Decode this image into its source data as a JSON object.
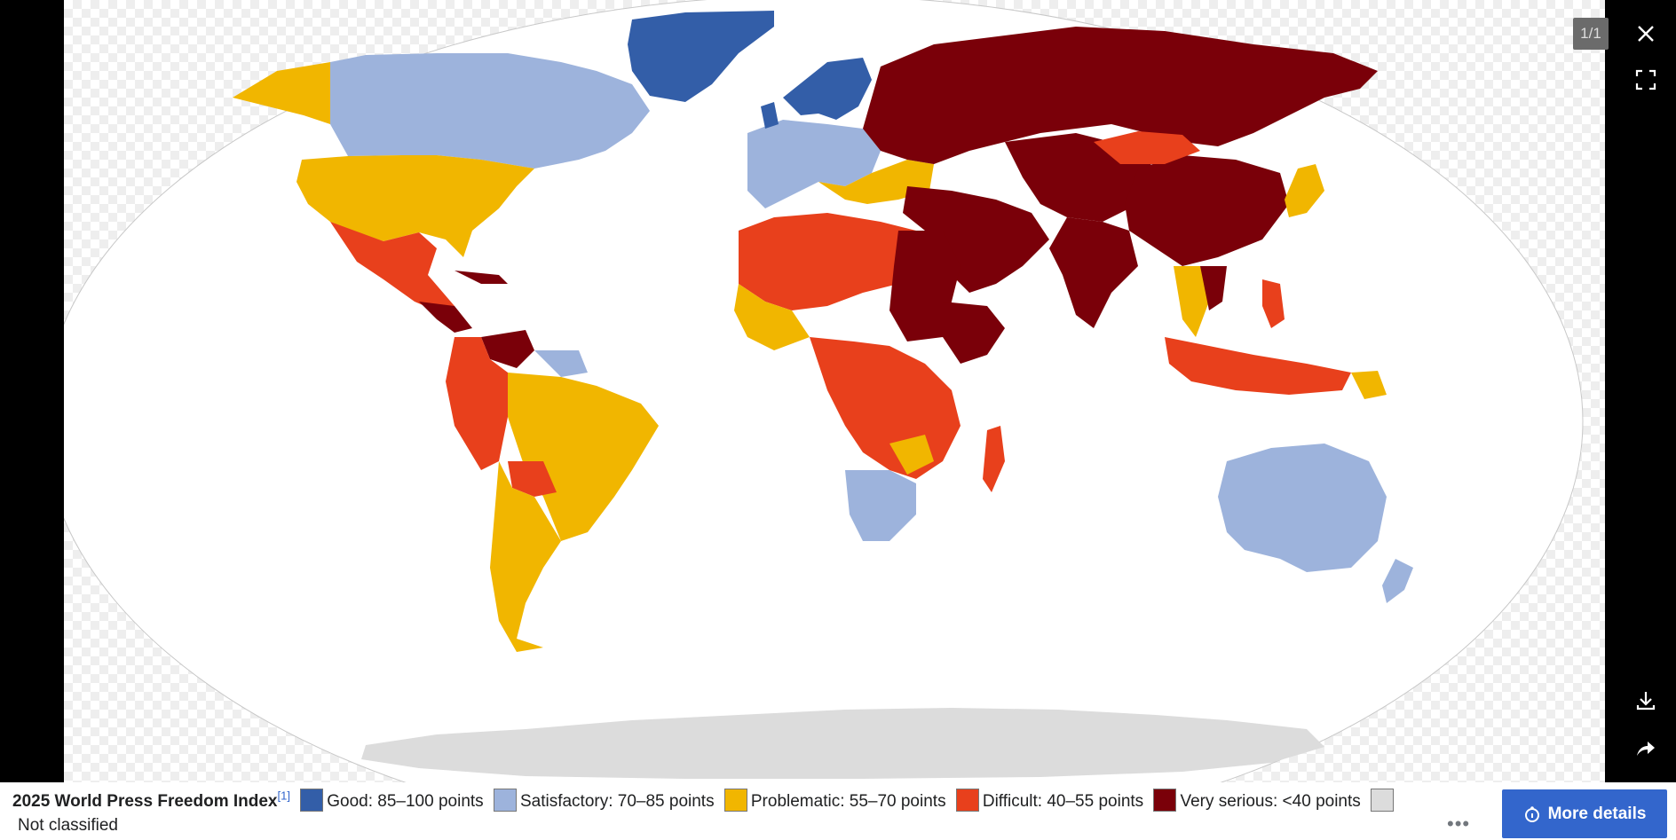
{
  "viewer": {
    "counter": "1/1",
    "controls": {
      "close": "close-icon",
      "fullscreen": "fullscreen-icon",
      "download": "download-icon",
      "share": "share-icon"
    }
  },
  "map": {
    "colors": {
      "good": "#335ea8",
      "satisfactory": "#9db3dc",
      "problematic": "#f1b600",
      "difficult": "#e8401c",
      "very_serious": "#7a0009",
      "not_classified": "#dcdcdc"
    }
  },
  "caption": {
    "title": "2025 World Press Freedom Index",
    "ref": "[1]",
    "legend": [
      {
        "label": "Good: 85–100 points",
        "color": "#335ea8"
      },
      {
        "label": "Satisfactory: 70–85 points",
        "color": "#9db3dc"
      },
      {
        "label": "Problematic: 55–70 points",
        "color": "#f1b600"
      },
      {
        "label": "Difficult: 40–55 points",
        "color": "#e8401c"
      },
      {
        "label": "Very serious: <40 points",
        "color": "#7a0009"
      },
      {
        "label": "Not classified",
        "color": "#dcdcdc"
      }
    ],
    "more_dots": "•••",
    "more_details": "More details"
  }
}
